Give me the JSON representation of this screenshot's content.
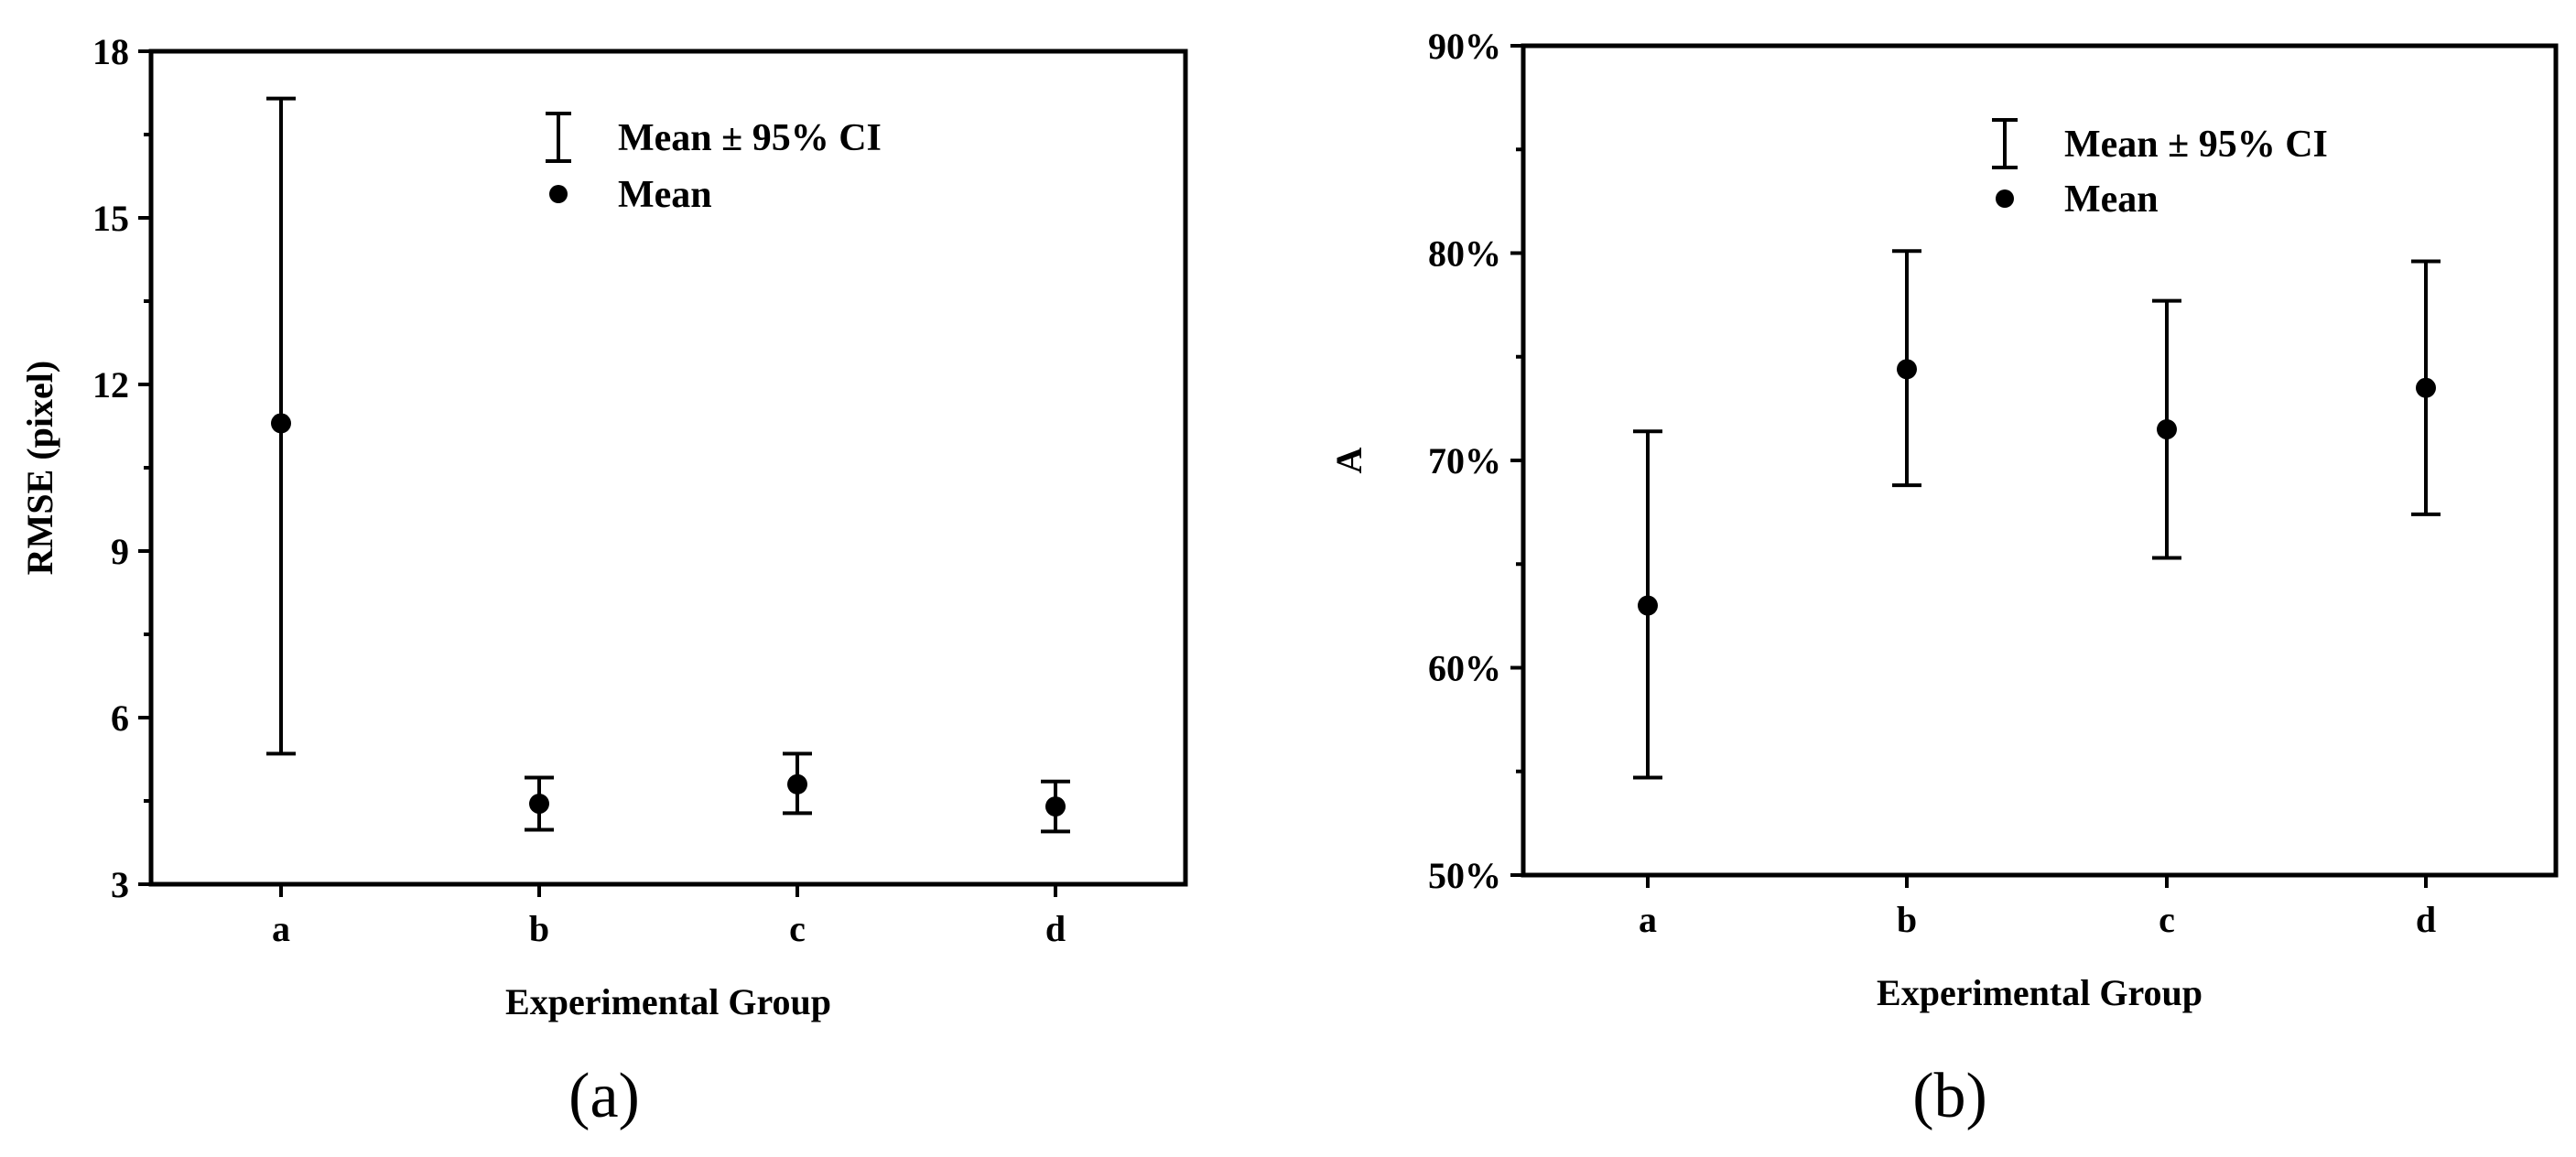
{
  "panel_labels": [
    "(a)",
    "(b)"
  ],
  "chart_data": [
    {
      "type": "scatter",
      "categories": [
        "a",
        "b",
        "c",
        "d"
      ],
      "series": [
        {
          "name": "Mean",
          "mean": [
            11.3,
            4.45,
            4.8,
            4.4
          ],
          "ci_low": [
            5.35,
            3.98,
            4.28,
            3.95
          ],
          "ci_high": [
            17.15,
            4.92,
            5.35,
            4.85
          ]
        }
      ],
      "legend": [
        "Mean ± 95% CI",
        "Mean"
      ],
      "legend_placement": "top-center",
      "xlabel": "Experimental Group",
      "ylabel": "RMSE (pixel)",
      "ylim": [
        3,
        18
      ],
      "yticks": [
        3,
        6,
        9,
        12,
        15,
        18
      ],
      "ytick_labels": [
        "3",
        "6",
        "9",
        "12",
        "15",
        "18"
      ],
      "grid": false
    },
    {
      "type": "scatter",
      "categories": [
        "a",
        "b",
        "c",
        "d"
      ],
      "series": [
        {
          "name": "Mean",
          "mean": [
            63.0,
            74.4,
            71.5,
            73.5
          ],
          "ci_low": [
            54.7,
            68.8,
            65.3,
            67.4
          ],
          "ci_high": [
            71.4,
            80.1,
            77.7,
            79.6
          ]
        }
      ],
      "legend": [
        "Mean  ± 95% CI",
        "Mean"
      ],
      "legend_placement": "top-center",
      "xlabel": "Experimental Group",
      "ylabel": "A",
      "ylim": [
        50,
        90
      ],
      "yticks": [
        50,
        60,
        70,
        80,
        90
      ],
      "ytick_labels": [
        "50%",
        "60%",
        "70%",
        "80%",
        "90%"
      ],
      "grid": false
    }
  ]
}
